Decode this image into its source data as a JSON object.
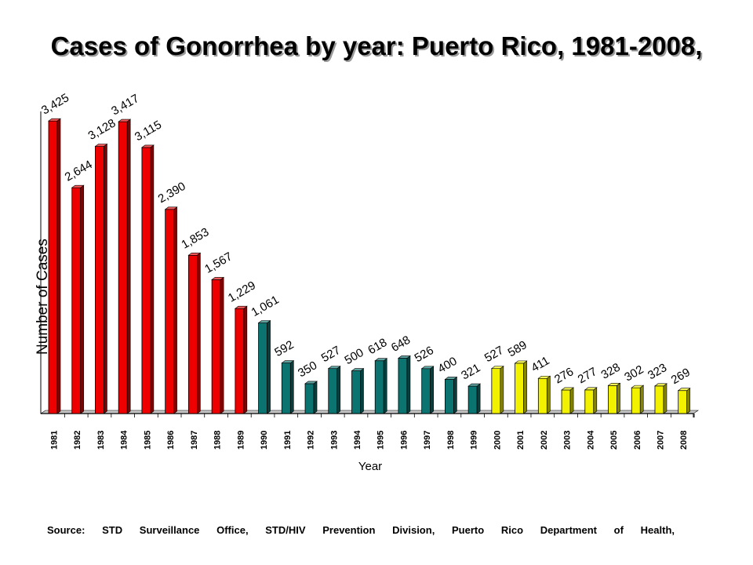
{
  "title": "Cases of Gonorrhea by year: Puerto Rico, 1981-2008,",
  "source": "Source: STD Surveillance Office, STD/HIV Prevention Division, Puerto Rico Department of Health,",
  "colors": {
    "red": "#ee0000",
    "teal": "#0b7370",
    "yellow": "#f2f200"
  },
  "chart_data": {
    "type": "bar",
    "title": "Cases of Gonorrhea by year: Puerto Rico, 1981-2008,",
    "xlabel": "Year",
    "ylabel": "Number of Cases",
    "ylim": [
      0,
      3500
    ],
    "grid": false,
    "legend": "none",
    "categories": [
      "1981",
      "1982",
      "1983",
      "1984",
      "1985",
      "1986",
      "1987",
      "1988",
      "1989",
      "1990",
      "1991",
      "1992",
      "1993",
      "1994",
      "1995",
      "1996",
      "1997",
      "1998",
      "1999",
      "2000",
      "2001",
      "2002",
      "2003",
      "2004",
      "2005",
      "2006",
      "2007",
      "2008"
    ],
    "values": [
      3425,
      2644,
      3128,
      3417,
      3115,
      2390,
      1853,
      1567,
      1229,
      1061,
      592,
      350,
      527,
      500,
      618,
      648,
      526,
      400,
      321,
      527,
      589,
      411,
      276,
      277,
      328,
      302,
      323,
      269
    ],
    "value_labels": [
      "3,425",
      "2,644",
      "3,128",
      "3,417",
      "3,115",
      "2,390",
      "1,853",
      "1,567",
      "1,229",
      "1,061",
      "592",
      "350",
      "527",
      "500",
      "618",
      "648",
      "526",
      "400",
      "321",
      "527",
      "589",
      "411",
      "276",
      "277",
      "328",
      "302",
      "323",
      "269"
    ],
    "bar_colors": [
      "red",
      "red",
      "red",
      "red",
      "red",
      "red",
      "red",
      "red",
      "red",
      "teal",
      "teal",
      "teal",
      "teal",
      "teal",
      "teal",
      "teal",
      "teal",
      "teal",
      "teal",
      "yellow",
      "yellow",
      "yellow",
      "yellow",
      "yellow",
      "yellow",
      "yellow",
      "yellow",
      "yellow"
    ]
  }
}
